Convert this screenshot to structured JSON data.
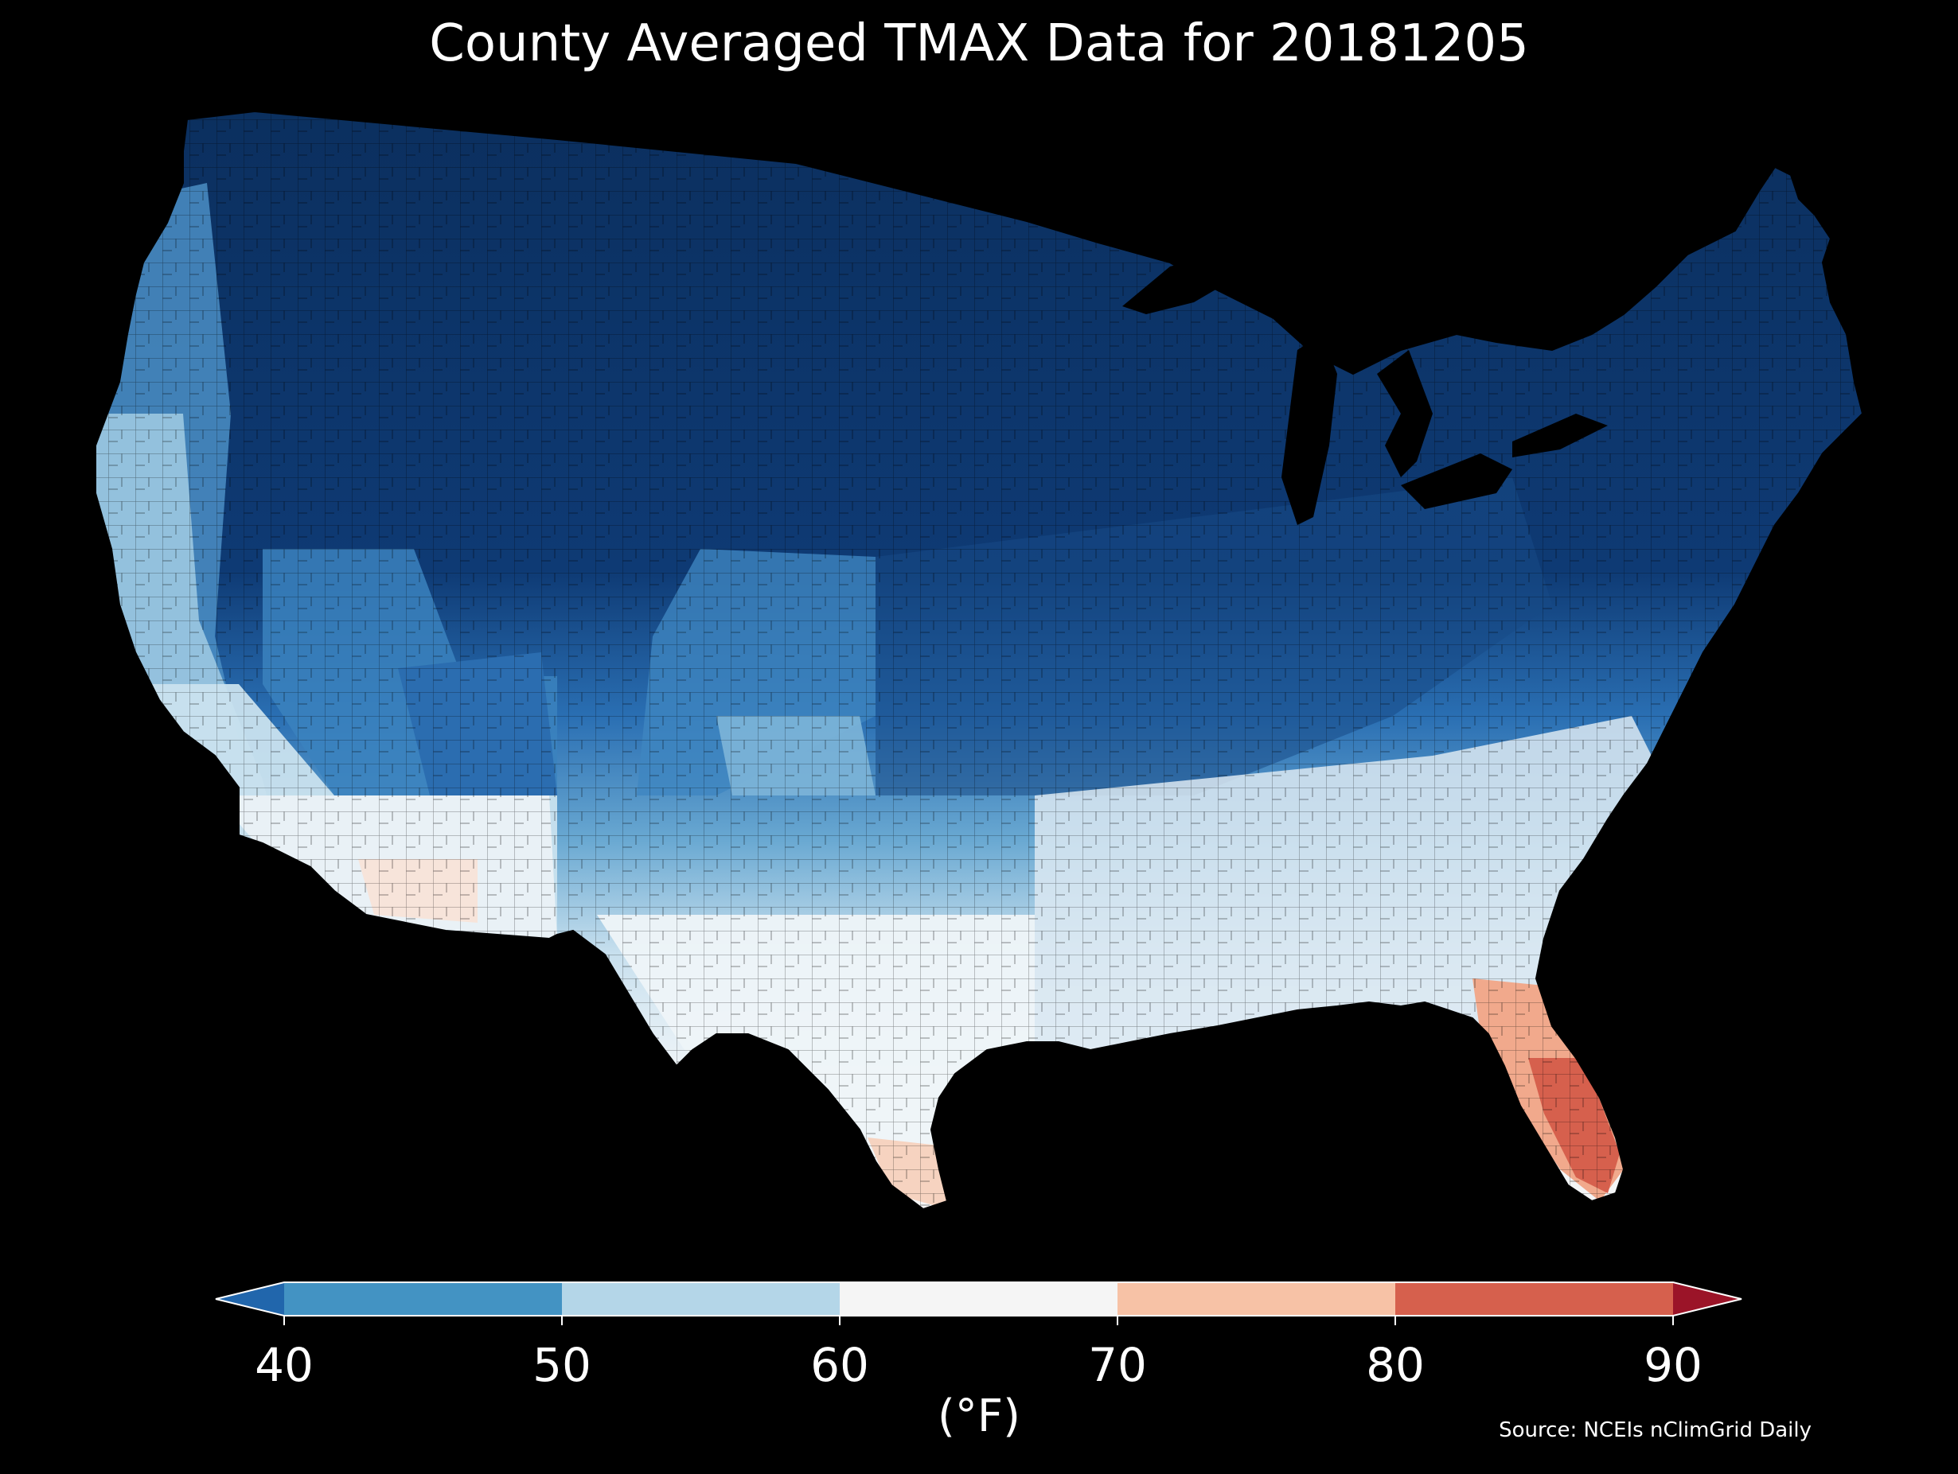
{
  "title": "County Averaged TMAX Data for 20181205",
  "colorbar": {
    "label": "(°F)",
    "ticks": [
      "40",
      "50",
      "60",
      "70",
      "80",
      "90"
    ],
    "bins": [
      {
        "from": null,
        "to": 40,
        "color": "#2166ac"
      },
      {
        "from": 40,
        "to": 50,
        "color": "#4393c3"
      },
      {
        "from": 50,
        "to": 60,
        "color": "#b4d6e8"
      },
      {
        "from": 60,
        "to": 70,
        "color": "#f5f5f5"
      },
      {
        "from": 70,
        "to": 80,
        "color": "#f7c2a6"
      },
      {
        "from": 80,
        "to": 90,
        "color": "#d6604d"
      },
      {
        "from": 90,
        "to": null,
        "color": "#9b1428"
      }
    ]
  },
  "source": "Source: NCEIs nClimGrid Daily",
  "colors": {
    "background": "#000000",
    "deep_blue": "#0c3365",
    "mid_blue": "#2166ac",
    "light_blue": "#92c5de",
    "white": "#f5f5f5",
    "warm": "#f4a582",
    "hot": "#d6604d"
  }
}
